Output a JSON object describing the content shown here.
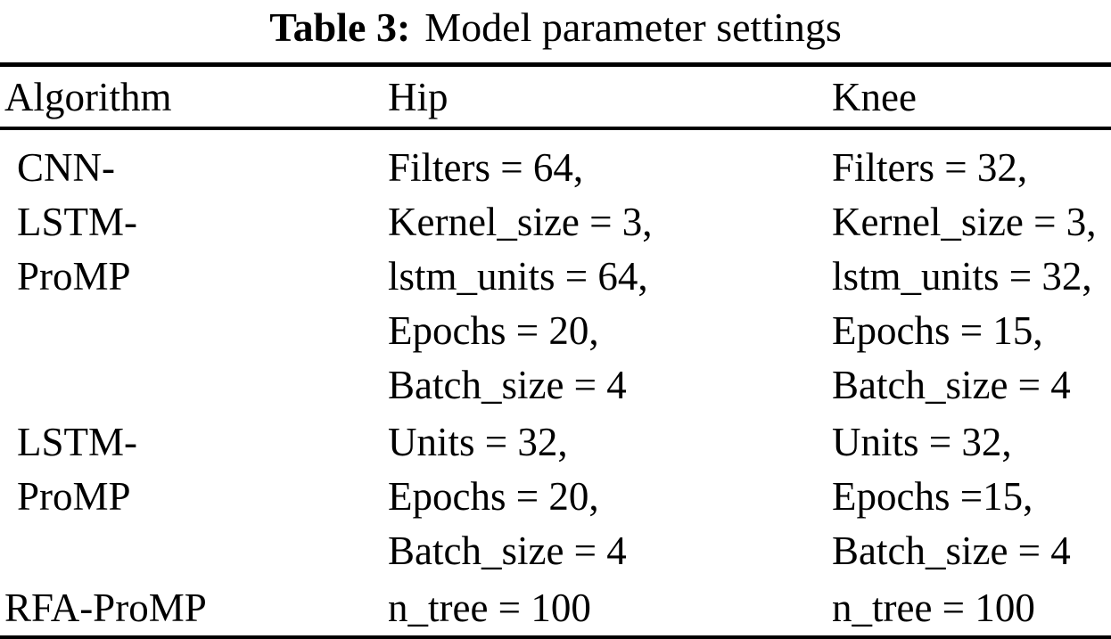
{
  "caption": {
    "label": "Table 3:",
    "text": "Model parameter settings"
  },
  "table": {
    "headers": [
      "Algorithm",
      "Hip",
      "Knee"
    ],
    "rows": [
      {
        "algorithm": "CNN-\nLSTM-\nProMP",
        "hip": "Filters = 64,\nKernel_size = 3,\nlstm_units = 64,\nEpochs = 20,\nBatch_size = 4",
        "knee": "Filters = 32,\nKernel_size = 3,\nlstm_units = 32,\nEpochs = 15,\nBatch_size = 4"
      },
      {
        "algorithm": "LSTM-\nProMP",
        "hip": "Units = 32,\nEpochs = 20,\nBatch_size = 4",
        "knee": "Units = 32,\nEpochs =15,\nBatch_size = 4"
      },
      {
        "algorithm": "RFA-ProMP",
        "hip": "n_tree = 100",
        "knee": "n_tree = 100"
      }
    ]
  }
}
